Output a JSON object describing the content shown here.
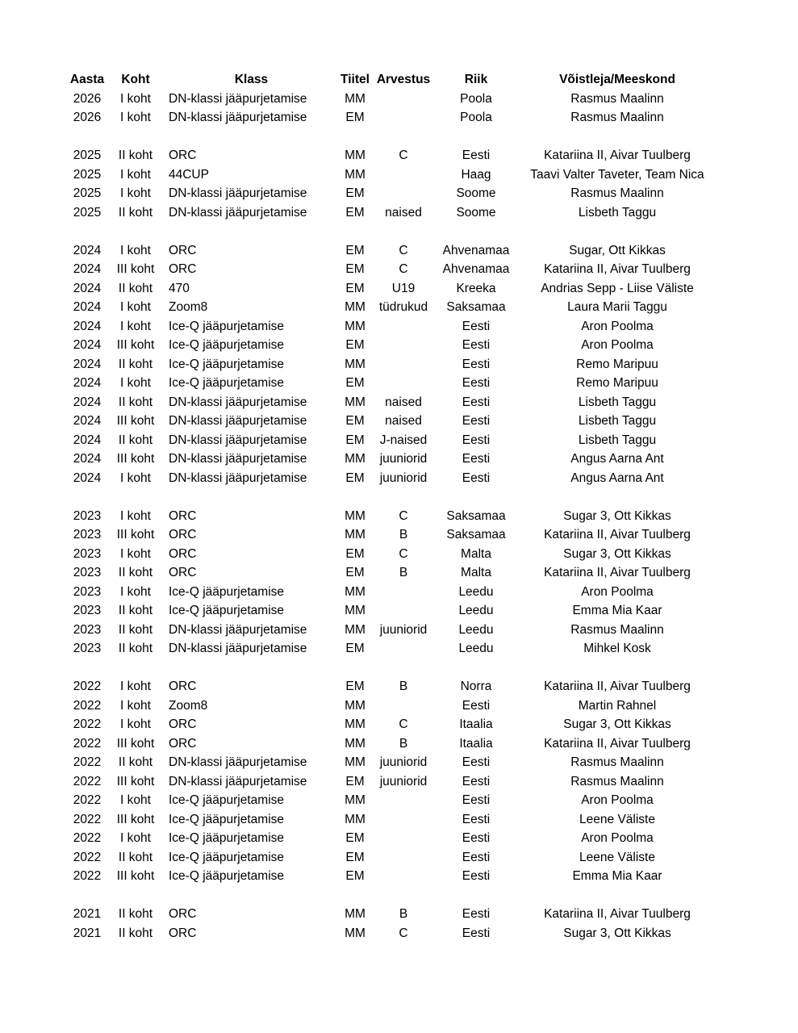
{
  "headers": [
    "Aasta",
    "Koht",
    "Klass",
    "Tiitel",
    "Arvestus",
    "Riik",
    "Võistleja/Meeskond"
  ],
  "groups": [
    {
      "rows": [
        [
          "2026",
          "I koht",
          "DN-klassi jääpurjetamise",
          "MM",
          "",
          "Poola",
          "Rasmus Maalinn"
        ],
        [
          "2026",
          "I koht",
          "DN-klassi jääpurjetamise",
          "EM",
          "",
          "Poola",
          "Rasmus Maalinn"
        ]
      ]
    },
    {
      "rows": [
        [
          "2025",
          "II koht",
          "ORC",
          "MM",
          "C",
          "Eesti",
          "Katariina II, Aivar Tuulberg"
        ],
        [
          "2025",
          "I koht",
          "44CUP",
          "MM",
          "",
          "Haag",
          "Taavi Valter Taveter, Team Nica"
        ],
        [
          "2025",
          "I koht",
          "DN-klassi jääpurjetamise",
          "EM",
          "",
          "Soome",
          "Rasmus Maalinn"
        ],
        [
          "2025",
          "II koht",
          "DN-klassi jääpurjetamise",
          "EM",
          "naised",
          "Soome",
          "Lisbeth Taggu"
        ]
      ]
    },
    {
      "rows": [
        [
          "2024",
          "I koht",
          "ORC",
          "EM",
          "C",
          "Ahvenamaa",
          "Sugar, Ott Kikkas"
        ],
        [
          "2024",
          "III koht",
          "ORC",
          "EM",
          "C",
          "Ahvenamaa",
          "Katariina II, Aivar Tuulberg"
        ],
        [
          "2024",
          "II koht",
          "470",
          "EM",
          "U19",
          "Kreeka",
          "Andrias Sepp - Liise Väliste"
        ],
        [
          "2024",
          "I koht",
          "Zoom8",
          "MM",
          "tüdrukud",
          "Saksamaa",
          "Laura Marii Taggu"
        ],
        [
          "2024",
          "I koht",
          "Ice-Q jääpurjetamise",
          "MM",
          "",
          "Eesti",
          "Aron Poolma"
        ],
        [
          "2024",
          "III koht",
          "Ice-Q jääpurjetamise",
          "EM",
          "",
          "Eesti",
          "Aron Poolma"
        ],
        [
          "2024",
          "II koht",
          "Ice-Q jääpurjetamise",
          "MM",
          "",
          "Eesti",
          "Remo Maripuu"
        ],
        [
          "2024",
          "I koht",
          "Ice-Q jääpurjetamise",
          "EM",
          "",
          "Eesti",
          "Remo Maripuu"
        ],
        [
          "2024",
          "II koht",
          "DN-klassi jääpurjetamise",
          "MM",
          "naised",
          "Eesti",
          "Lisbeth Taggu"
        ],
        [
          "2024",
          "III koht",
          "DN-klassi jääpurjetamise",
          "EM",
          "naised",
          "Eesti",
          "Lisbeth Taggu"
        ],
        [
          "2024",
          "II koht",
          "DN-klassi jääpurjetamise",
          "EM",
          "J-naised",
          "Eesti",
          "Lisbeth Taggu"
        ],
        [
          "2024",
          "III koht",
          "DN-klassi jääpurjetamise",
          "MM",
          "juuniorid",
          "Eesti",
          "Angus Aarna Ant"
        ],
        [
          "2024",
          "I koht",
          "DN-klassi jääpurjetamise",
          "EM",
          "juuniorid",
          "Eesti",
          "Angus Aarna Ant"
        ]
      ]
    },
    {
      "rows": [
        [
          "2023",
          "I koht",
          "ORC",
          "MM",
          "C",
          "Saksamaa",
          "Sugar 3, Ott Kikkas"
        ],
        [
          "2023",
          "III koht",
          "ORC",
          "MM",
          "B",
          "Saksamaa",
          "Katariina II, Aivar Tuulberg"
        ],
        [
          "2023",
          "I koht",
          "ORC",
          "EM",
          "C",
          "Malta",
          "Sugar 3, Ott Kikkas"
        ],
        [
          "2023",
          "II koht",
          "ORC",
          "EM",
          "B",
          "Malta",
          "Katariina II, Aivar Tuulberg"
        ],
        [
          "2023",
          "I koht",
          "Ice-Q jääpurjetamise",
          "MM",
          "",
          "Leedu",
          "Aron Poolma"
        ],
        [
          "2023",
          "II koht",
          "Ice-Q jääpurjetamise",
          "MM",
          "",
          "Leedu",
          "Emma Mia Kaar"
        ],
        [
          "2023",
          "II koht",
          "DN-klassi jääpurjetamise",
          "MM",
          "juuniorid",
          "Leedu",
          "Rasmus Maalinn"
        ],
        [
          "2023",
          "II koht",
          "DN-klassi jääpurjetamise",
          "EM",
          "",
          "Leedu",
          "Mihkel Kosk"
        ]
      ]
    },
    {
      "rows": [
        [
          "2022",
          "I koht",
          "ORC",
          "EM",
          "B",
          "Norra",
          "Katariina II, Aivar Tuulberg"
        ],
        [
          "2022",
          "I koht",
          "Zoom8",
          "MM",
          "",
          "Eesti",
          "Martin Rahnel"
        ],
        [
          "2022",
          "I koht",
          "ORC",
          "MM",
          "C",
          "Itaalia",
          "Sugar 3, Ott Kikkas"
        ],
        [
          "2022",
          "III koht",
          "ORC",
          "MM",
          "B",
          "Itaalia",
          "Katariina II, Aivar Tuulberg"
        ],
        [
          "2022",
          "II koht",
          "DN-klassi jääpurjetamise",
          "MM",
          "juuniorid",
          "Eesti",
          "Rasmus Maalinn"
        ],
        [
          "2022",
          "III koht",
          "DN-klassi jääpurjetamise",
          "EM",
          "juuniorid",
          "Eesti",
          "Rasmus Maalinn"
        ],
        [
          "2022",
          "I koht",
          "Ice-Q jääpurjetamise",
          "MM",
          "",
          "Eesti",
          "Aron Poolma"
        ],
        [
          "2022",
          "III koht",
          "Ice-Q jääpurjetamise",
          "MM",
          "",
          "Eesti",
          "Leene Väliste"
        ],
        [
          "2022",
          "I koht",
          "Ice-Q jääpurjetamise",
          "EM",
          "",
          "Eesti",
          "Aron Poolma"
        ],
        [
          "2022",
          "II koht",
          "Ice-Q jääpurjetamise",
          "EM",
          "",
          "Eesti",
          "Leene Väliste"
        ],
        [
          "2022",
          "III koht",
          "Ice-Q jääpurjetamise",
          "EM",
          "",
          "Eesti",
          "Emma Mia Kaar"
        ]
      ]
    },
    {
      "rows": [
        [
          "2021",
          "II koht",
          "ORC",
          "MM",
          "B",
          "Eesti",
          "Katariina II, Aivar Tuulberg"
        ],
        [
          "2021",
          "II koht",
          "ORC",
          "MM",
          "C",
          "Eesti",
          "Sugar 3, Ott Kikkas"
        ]
      ]
    }
  ]
}
